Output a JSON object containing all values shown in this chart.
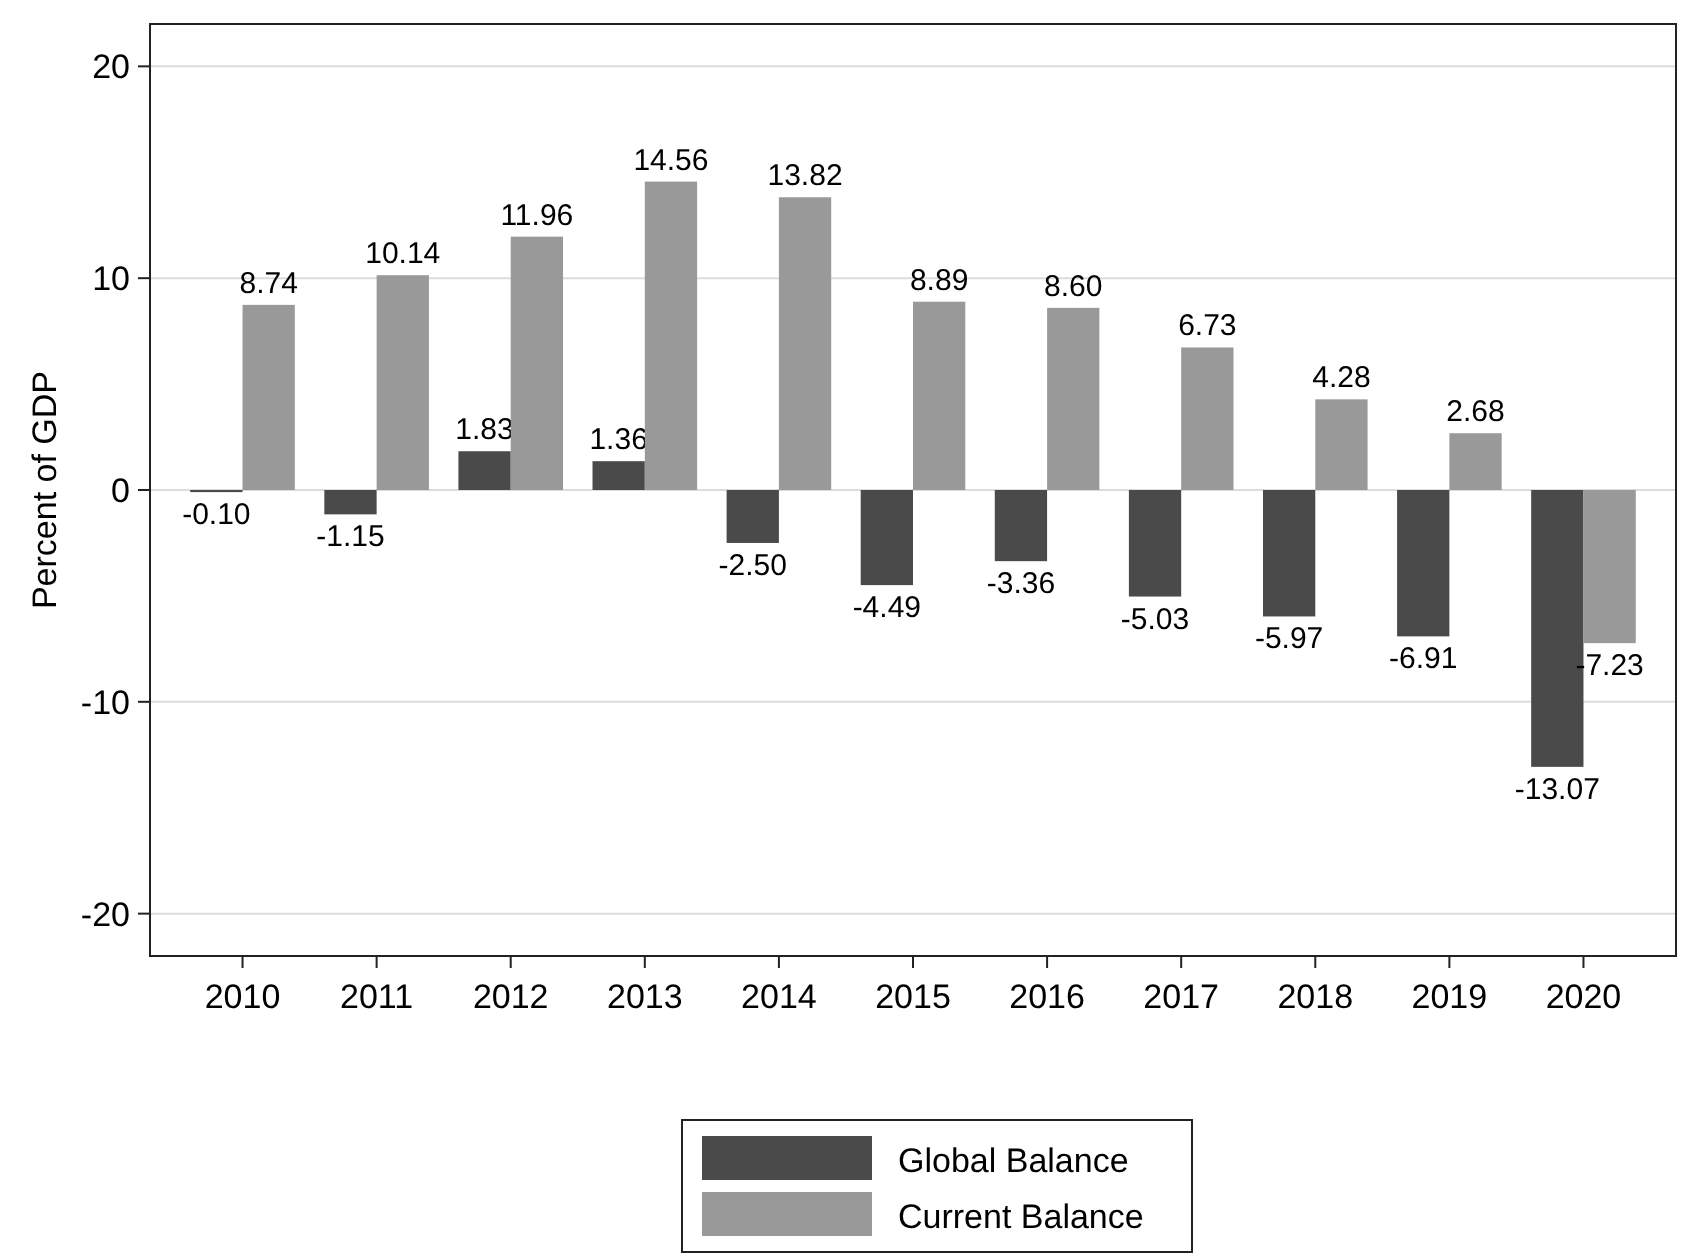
{
  "chart_data": {
    "type": "bar",
    "ylabel": "Percent of GDP",
    "categories": [
      "2010",
      "2011",
      "2012",
      "2013",
      "2014",
      "2015",
      "2016",
      "2017",
      "2018",
      "2019",
      "2020"
    ],
    "series": [
      {
        "name": "Global Balance",
        "color": "#4a4a4a",
        "values": [
          -0.1,
          -1.15,
          1.83,
          1.36,
          -2.5,
          -4.49,
          -3.36,
          -5.03,
          -5.97,
          -6.91,
          -13.07
        ],
        "value_labels": [
          "-0.10",
          "-1.15",
          "1.83",
          "1.36",
          "-2.50",
          "-4.49",
          "-3.36",
          "-5.03",
          "-5.97",
          "-6.91",
          "-13.07"
        ]
      },
      {
        "name": "Current Balance",
        "color": "#999999",
        "values": [
          8.74,
          10.14,
          11.96,
          14.56,
          13.82,
          8.89,
          8.6,
          6.73,
          4.28,
          2.68,
          -7.23
        ],
        "value_labels": [
          "8.74",
          "10.14",
          "11.96",
          "14.56",
          "13.82",
          "8.89",
          "8.60",
          "6.73",
          "4.28",
          "2.68",
          "-7.23"
        ]
      }
    ],
    "ylim": [
      -22,
      22
    ],
    "yticks": [
      -20,
      -10,
      0,
      10,
      20
    ],
    "grid": "y",
    "legend": "bottom"
  }
}
